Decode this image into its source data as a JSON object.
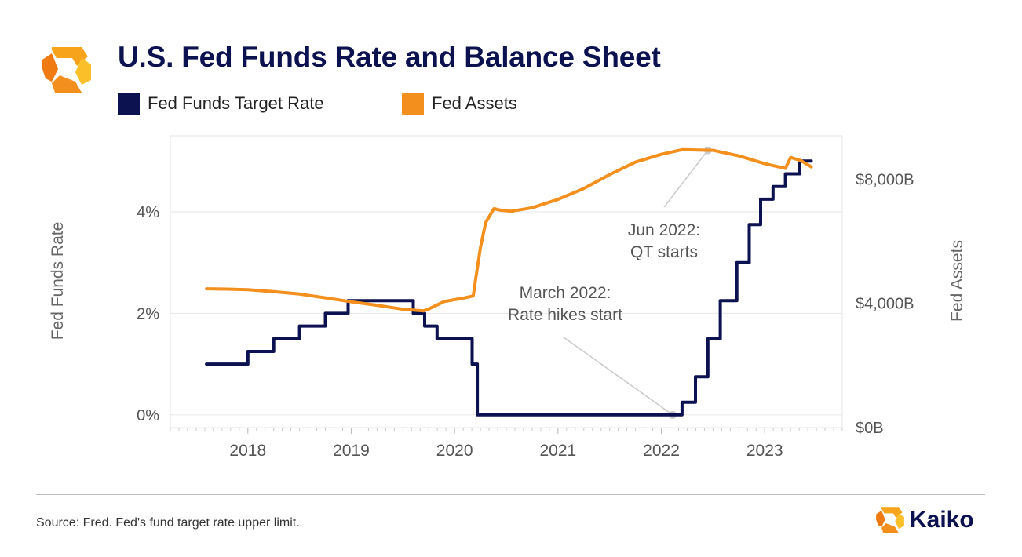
{
  "header": {
    "title": "U.S. Fed Funds Rate and Balance Sheet"
  },
  "legend": [
    {
      "label": "Fed Funds Target Rate",
      "color": "#0c1150"
    },
    {
      "label": "Fed Assets",
      "color": "#f38f1d"
    }
  ],
  "footer": {
    "source": "Source: Fred. Fed's fund target rate upper limit.",
    "brand": "Kaiko"
  },
  "colors": {
    "navy": "#0c1150",
    "orange": "#f38f1d",
    "grid": "#e6e6e6",
    "annotation": "#c9c9c9"
  },
  "chart_data": {
    "type": "line",
    "title": "U.S. Fed Funds Rate and Balance Sheet",
    "xlim": [
      2017.25,
      2023.75
    ],
    "x_ticks": [
      {
        "label": "2018",
        "x": 2018
      },
      {
        "label": "2019",
        "x": 2019
      },
      {
        "label": "2020",
        "x": 2020
      },
      {
        "label": "2021",
        "x": 2021
      },
      {
        "label": "2022",
        "x": 2022
      },
      {
        "label": "2023",
        "x": 2023
      }
    ],
    "left_axis": {
      "label": "Fed Funds Rate",
      "range": [
        -0.25,
        5.5
      ],
      "ticks": [
        {
          "label": "0%",
          "value": 0
        },
        {
          "label": "2%",
          "value": 2
        },
        {
          "label": "4%",
          "value": 4
        }
      ]
    },
    "right_axis": {
      "label": "Fed Assets",
      "range": [
        0,
        9400
      ],
      "ticks": [
        {
          "label": "$0B",
          "value": 0
        },
        {
          "label": "$4,000B",
          "value": 4000
        },
        {
          "label": "$8,000B",
          "value": 8000
        }
      ]
    },
    "grid": "horizontal",
    "legend_position": "top-left",
    "series": [
      {
        "name": "Fed Funds Target Rate",
        "axis": "left",
        "color": "#0c1150",
        "step": true,
        "points": [
          [
            2017.6,
            1.0
          ],
          [
            2018.0,
            1.0
          ],
          [
            2018.0,
            1.25
          ],
          [
            2018.25,
            1.25
          ],
          [
            2018.25,
            1.5
          ],
          [
            2018.5,
            1.5
          ],
          [
            2018.5,
            1.75
          ],
          [
            2018.75,
            1.75
          ],
          [
            2018.75,
            2.0
          ],
          [
            2018.97,
            2.0
          ],
          [
            2018.97,
            2.25
          ],
          [
            2019.6,
            2.25
          ],
          [
            2019.6,
            2.0
          ],
          [
            2019.71,
            2.0
          ],
          [
            2019.71,
            1.75
          ],
          [
            2019.83,
            1.75
          ],
          [
            2019.83,
            1.5
          ],
          [
            2020.17,
            1.5
          ],
          [
            2020.17,
            1.0
          ],
          [
            2020.22,
            1.0
          ],
          [
            2020.22,
            0.0
          ],
          [
            2022.2,
            0.0
          ],
          [
            2022.2,
            0.25
          ],
          [
            2022.33,
            0.25
          ],
          [
            2022.33,
            0.75
          ],
          [
            2022.45,
            0.75
          ],
          [
            2022.45,
            1.5
          ],
          [
            2022.57,
            1.5
          ],
          [
            2022.57,
            2.25
          ],
          [
            2022.73,
            2.25
          ],
          [
            2022.73,
            3.0
          ],
          [
            2022.85,
            3.0
          ],
          [
            2022.85,
            3.75
          ],
          [
            2022.96,
            3.75
          ],
          [
            2022.96,
            4.25
          ],
          [
            2023.08,
            4.25
          ],
          [
            2023.08,
            4.5
          ],
          [
            2023.2,
            4.5
          ],
          [
            2023.2,
            4.75
          ],
          [
            2023.34,
            4.75
          ],
          [
            2023.34,
            5.0
          ],
          [
            2023.45,
            5.0
          ]
        ]
      },
      {
        "name": "Fed Assets",
        "axis": "right",
        "color": "#f38f1d",
        "points": [
          [
            2017.6,
            4470
          ],
          [
            2017.8,
            4460
          ],
          [
            2018.0,
            4440
          ],
          [
            2018.25,
            4380
          ],
          [
            2018.5,
            4300
          ],
          [
            2018.75,
            4180
          ],
          [
            2019.0,
            4050
          ],
          [
            2019.25,
            3940
          ],
          [
            2019.5,
            3810
          ],
          [
            2019.7,
            3760
          ],
          [
            2019.75,
            3820
          ],
          [
            2019.9,
            4060
          ],
          [
            2020.1,
            4180
          ],
          [
            2020.18,
            4240
          ],
          [
            2020.2,
            4700
          ],
          [
            2020.25,
            5800
          ],
          [
            2020.3,
            6600
          ],
          [
            2020.38,
            7050
          ],
          [
            2020.45,
            7000
          ],
          [
            2020.55,
            6970
          ],
          [
            2020.75,
            7080
          ],
          [
            2021.0,
            7350
          ],
          [
            2021.25,
            7700
          ],
          [
            2021.5,
            8150
          ],
          [
            2021.75,
            8550
          ],
          [
            2022.0,
            8800
          ],
          [
            2022.2,
            8950
          ],
          [
            2022.5,
            8930
          ],
          [
            2022.75,
            8750
          ],
          [
            2023.0,
            8500
          ],
          [
            2023.2,
            8350
          ],
          [
            2023.25,
            8700
          ],
          [
            2023.35,
            8600
          ],
          [
            2023.45,
            8400
          ]
        ]
      }
    ],
    "annotations": [
      {
        "text_lines": [
          "March 2022:",
          "Rate hikes start"
        ],
        "x": 2022.11,
        "value": 0.0,
        "axis": "left"
      },
      {
        "text_lines": [
          "Jun 2022:",
          "QT starts"
        ],
        "x": 2022.45,
        "value": 8930,
        "axis": "right"
      }
    ]
  }
}
